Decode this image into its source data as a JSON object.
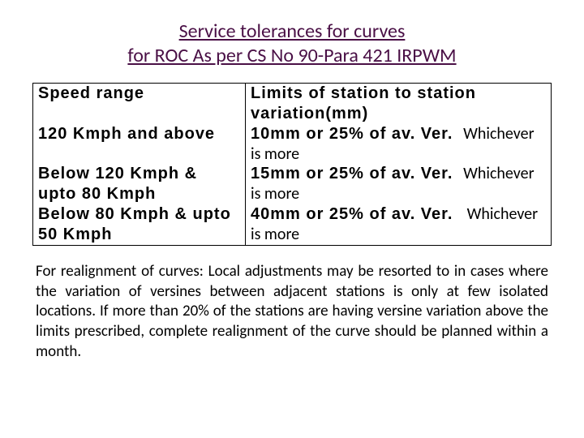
{
  "title": {
    "line1": "Service tolerances for curves",
    "line2": "for ROC As per CS No 90-Para 421 IRPWM",
    "color": "#4a1046",
    "fontsize": 24
  },
  "table": {
    "border_color": "#000000",
    "header_font": "Verdana",
    "header_fontsize": 20,
    "header_bold": true,
    "columns": [
      {
        "label": "Speed range",
        "width_pct": 41
      },
      {
        "label": "Limits of station to station variation(mm)",
        "width_pct": 59
      }
    ],
    "rows": [
      {
        "speed": "120 Kmph and above",
        "limit_main": "10mm or 25% of av. Ver.",
        "limit_note": "Whichever is more"
      },
      {
        "speed": "Below 120 Kmph & upto 80 Kmph",
        "limit_main": "15mm or 25% of av. Ver.",
        "limit_note": "Whichever is more"
      },
      {
        "speed": "Below 80 Kmph & upto 50 Kmph",
        "limit_main": "40mm or 25% of av. Ver.",
        "limit_note": "Whichever is more"
      }
    ],
    "note_font": "Calibri",
    "note_fontsize": 20
  },
  "paragraph": {
    "text": "For realignment of curves: Local adjustments may be resorted to in cases where the variation of versines between adjacent stations is only at few isolated locations. If more than 20% of the stations are having versine variation above the limits prescribed, complete realignment of the curve should be planned within a month.",
    "fontsize": 19,
    "align": "justify"
  }
}
